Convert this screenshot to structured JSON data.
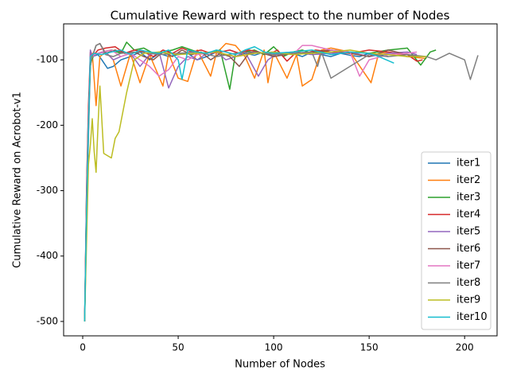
{
  "chart_data": {
    "type": "line",
    "title": "Cumulative Reward with respect to the number of Nodes",
    "x_label": "Number of Nodes",
    "y_label": "Cumulative Reward on Acrobot-v1",
    "xlim": [
      -10,
      217
    ],
    "ylim": [
      -522,
      -45
    ],
    "xticks": [
      0,
      50,
      100,
      150,
      200
    ],
    "yticks": [
      -500,
      -400,
      -300,
      -200,
      -100
    ],
    "legend": "lower right",
    "series": [
      {
        "name": "iter1",
        "color": "#1f77b4",
        "x": [
          1,
          2,
          3,
          4,
          5,
          8,
          10,
          13,
          16,
          20,
          25,
          30,
          35,
          40,
          45,
          50,
          55,
          60,
          65,
          70,
          75,
          80,
          85,
          90,
          95,
          100,
          105,
          110,
          115,
          120,
          125,
          130,
          135,
          140,
          145,
          150,
          155,
          160
        ],
        "values": [
          -500,
          -300,
          -180,
          -110,
          -95,
          -92,
          -100,
          -113,
          -110,
          -100,
          -95,
          -88,
          -100,
          -90,
          -95,
          -92,
          -90,
          -100,
          -95,
          -88,
          -92,
          -95,
          -90,
          -93,
          -88,
          -95,
          -92,
          -90,
          -95,
          -88,
          -92,
          -95,
          -90,
          -93,
          -95,
          -90,
          -92,
          -95
        ]
      },
      {
        "name": "iter2",
        "color": "#ff7f0e",
        "x": [
          1,
          2,
          3,
          4,
          5,
          7,
          9,
          12,
          16,
          20,
          25,
          30,
          35,
          42,
          45,
          50,
          55,
          60,
          67,
          70,
          75,
          80,
          85,
          90,
          95,
          97,
          100,
          107,
          112,
          115,
          120,
          125,
          130,
          140,
          151,
          155,
          160,
          170,
          180
        ],
        "values": [
          -500,
          -320,
          -200,
          -110,
          -90,
          -170,
          -95,
          -88,
          -100,
          -140,
          -90,
          -135,
          -92,
          -140,
          -90,
          -128,
          -133,
          -85,
          -125,
          -90,
          -75,
          -78,
          -95,
          -128,
          -85,
          -135,
          -88,
          -128,
          -92,
          -140,
          -130,
          -85,
          -82,
          -88,
          -135,
          -90,
          -88,
          -95,
          -98
        ]
      },
      {
        "name": "iter3",
        "color": "#2ca02c",
        "x": [
          1,
          2,
          3,
          4,
          6,
          10,
          15,
          20,
          23,
          27,
          32,
          37,
          42,
          47,
          52,
          57,
          62,
          67,
          72,
          77,
          80,
          85,
          90,
          95,
          100,
          105,
          110,
          115,
          120,
          125,
          130,
          140,
          150,
          160,
          170,
          177,
          182,
          185
        ],
        "values": [
          -500,
          -310,
          -190,
          -105,
          -92,
          -88,
          -85,
          -90,
          -73,
          -85,
          -82,
          -90,
          -88,
          -85,
          -80,
          -85,
          -90,
          -88,
          -85,
          -145,
          -90,
          -88,
          -85,
          -92,
          -80,
          -95,
          -88,
          -85,
          -90,
          -88,
          -85,
          -88,
          -90,
          -85,
          -82,
          -108,
          -88,
          -85
        ]
      },
      {
        "name": "iter4",
        "color": "#d62728",
        "x": [
          1,
          2,
          3,
          4,
          5,
          8,
          12,
          17,
          22,
          27,
          32,
          37,
          42,
          47,
          52,
          57,
          62,
          67,
          72,
          77,
          82,
          87,
          92,
          97,
          102,
          107,
          112,
          117,
          122,
          130,
          140,
          150,
          160,
          170,
          175,
          178
        ],
        "values": [
          -500,
          -300,
          -170,
          -88,
          -95,
          -85,
          -82,
          -80,
          -90,
          -85,
          -88,
          -95,
          -85,
          -90,
          -82,
          -88,
          -85,
          -90,
          -88,
          -85,
          -90,
          -85,
          -88,
          -92,
          -85,
          -102,
          -88,
          -90,
          -85,
          -88,
          -90,
          -85,
          -88,
          -92,
          -102,
          -100
        ]
      },
      {
        "name": "iter5",
        "color": "#9467bd",
        "x": [
          1,
          2,
          3,
          4,
          5,
          8,
          12,
          16,
          20,
          25,
          30,
          35,
          40,
          45,
          50,
          55,
          60,
          65,
          70,
          75,
          80,
          85,
          92,
          97,
          102,
          110,
          120,
          130,
          140,
          150,
          160,
          170,
          175
        ],
        "values": [
          -500,
          -330,
          -200,
          -85,
          -95,
          -90,
          -88,
          -100,
          -95,
          -90,
          -110,
          -92,
          -88,
          -143,
          -110,
          -95,
          -100,
          -90,
          -88,
          -100,
          -95,
          -88,
          -125,
          -100,
          -90,
          -88,
          -92,
          -90,
          -88,
          -95,
          -90,
          -88,
          -92
        ]
      },
      {
        "name": "iter6",
        "color": "#8c564b",
        "x": [
          1,
          2,
          3,
          4,
          5,
          7,
          9,
          12,
          17,
          22,
          27,
          32,
          37,
          42,
          47,
          52,
          57,
          62,
          67,
          72,
          77,
          82,
          87,
          92,
          100,
          110,
          120,
          130,
          140,
          150,
          160,
          170,
          175
        ],
        "values": [
          -500,
          -340,
          -210,
          -100,
          -95,
          -78,
          -75,
          -90,
          -85,
          -90,
          -88,
          -95,
          -100,
          -88,
          -95,
          -85,
          -92,
          -88,
          -100,
          -90,
          -95,
          -110,
          -90,
          -88,
          -95,
          -90,
          -88,
          -85,
          -90,
          -95,
          -85,
          -92,
          -95
        ]
      },
      {
        "name": "iter7",
        "color": "#e377c2",
        "x": [
          1,
          2,
          3,
          4,
          6,
          10,
          15,
          20,
          25,
          30,
          35,
          40,
          45,
          50,
          55,
          60,
          65,
          70,
          80,
          90,
          100,
          110,
          115,
          120,
          130,
          140,
          145,
          150,
          160,
          170,
          175
        ],
        "values": [
          -500,
          -320,
          -190,
          -100,
          -92,
          -88,
          -85,
          -95,
          -90,
          -100,
          -110,
          -125,
          -115,
          -95,
          -100,
          -92,
          -90,
          -88,
          -95,
          -90,
          -88,
          -92,
          -78,
          -78,
          -85,
          -88,
          -125,
          -100,
          -92,
          -90,
          -88
        ]
      },
      {
        "name": "iter8",
        "color": "#7f7f7f",
        "x": [
          1,
          2,
          3,
          4,
          5,
          7,
          9,
          12,
          16,
          20,
          30,
          40,
          50,
          60,
          70,
          80,
          90,
          100,
          110,
          120,
          123,
          125,
          130,
          140,
          150,
          160,
          170,
          180,
          185,
          192,
          200,
          203,
          207
        ],
        "values": [
          -500,
          -350,
          -220,
          -105,
          -95,
          -78,
          -75,
          -92,
          -95,
          -90,
          -88,
          -92,
          -90,
          -88,
          -95,
          -90,
          -88,
          -92,
          -90,
          -88,
          -110,
          -88,
          -128,
          -110,
          -92,
          -95,
          -92,
          -95,
          -100,
          -90,
          -100,
          -130,
          -93
        ]
      },
      {
        "name": "iter9",
        "color": "#bcbd22",
        "x": [
          1,
          2,
          3,
          4,
          5,
          6,
          7,
          8,
          9,
          11,
          15,
          17,
          19,
          23,
          27,
          32,
          40,
          50,
          60,
          70,
          80,
          90,
          100,
          110,
          120,
          130,
          140,
          150,
          160,
          170,
          180
        ],
        "values": [
          -500,
          -380,
          -260,
          -230,
          -190,
          -240,
          -272,
          -200,
          -140,
          -243,
          -250,
          -220,
          -210,
          -150,
          -100,
          -90,
          -88,
          -92,
          -90,
          -88,
          -95,
          -90,
          -88,
          -92,
          -90,
          -88,
          -85,
          -90,
          -92,
          -95,
          -95
        ]
      },
      {
        "name": "iter10",
        "color": "#17becf",
        "x": [
          1,
          2,
          3,
          4,
          6,
          10,
          15,
          20,
          25,
          30,
          35,
          40,
          45,
          50,
          52,
          55,
          60,
          65,
          70,
          75,
          80,
          85,
          90,
          95,
          100,
          110,
          120,
          130,
          140,
          150,
          155,
          163
        ],
        "values": [
          -500,
          -330,
          -200,
          -95,
          -90,
          -92,
          -88,
          -85,
          -92,
          -85,
          -88,
          -90,
          -85,
          -100,
          -130,
          -85,
          -88,
          -90,
          -85,
          -88,
          -92,
          -85,
          -80,
          -88,
          -90,
          -88,
          -85,
          -92,
          -88,
          -90,
          -95,
          -105
        ]
      }
    ]
  }
}
